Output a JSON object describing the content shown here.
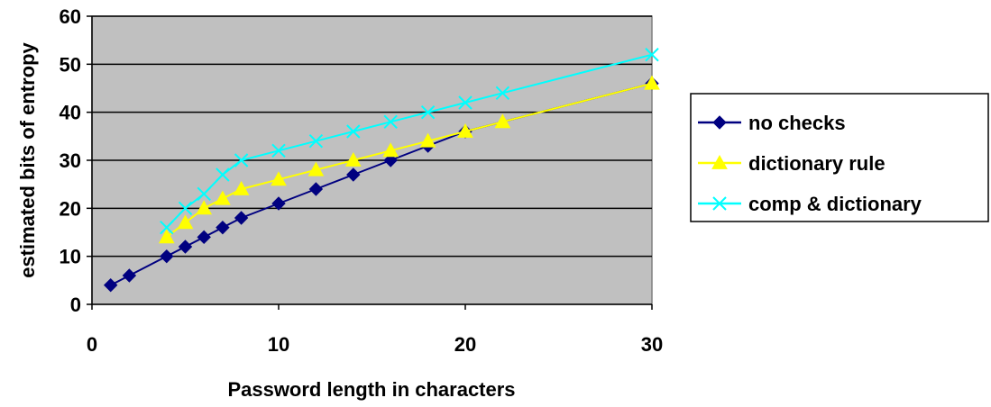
{
  "chart_data": {
    "type": "line",
    "xlabel": "Password length in characters",
    "ylabel": "estimated bits of entropy",
    "xlim": [
      0,
      30
    ],
    "ylim": [
      0,
      60
    ],
    "xticks": [
      "0",
      "10",
      "20",
      "30"
    ],
    "yticks": [
      "0",
      "10",
      "20",
      "30",
      "40",
      "50",
      "60"
    ],
    "grid": "horizontal",
    "legend_position": "right",
    "plot_background": "#c0c0c0",
    "series": [
      {
        "name": "no checks",
        "color": "#000080",
        "marker": "diamond",
        "x": [
          1,
          2,
          4,
          5,
          6,
          7,
          8,
          10,
          12,
          14,
          16,
          18,
          20,
          30
        ],
        "y": [
          4,
          6,
          10,
          12,
          14,
          16,
          18,
          21,
          24,
          27,
          30,
          33,
          36,
          46
        ]
      },
      {
        "name": "dictionary rule",
        "color": "#ffff00",
        "marker": "triangle",
        "x": [
          4,
          5,
          6,
          7,
          8,
          10,
          12,
          14,
          16,
          18,
          20,
          22,
          30
        ],
        "y": [
          14,
          17,
          20,
          22,
          24,
          26,
          28,
          30,
          32,
          34,
          36,
          38,
          46
        ]
      },
      {
        "name": "comp & dictionary",
        "color": "#00ffff",
        "marker": "x",
        "x": [
          4,
          5,
          6,
          7,
          8,
          10,
          12,
          14,
          16,
          18,
          20,
          22,
          30
        ],
        "y": [
          16,
          20,
          23,
          27,
          30,
          32,
          34,
          36,
          38,
          40,
          42,
          44,
          52
        ]
      }
    ]
  }
}
